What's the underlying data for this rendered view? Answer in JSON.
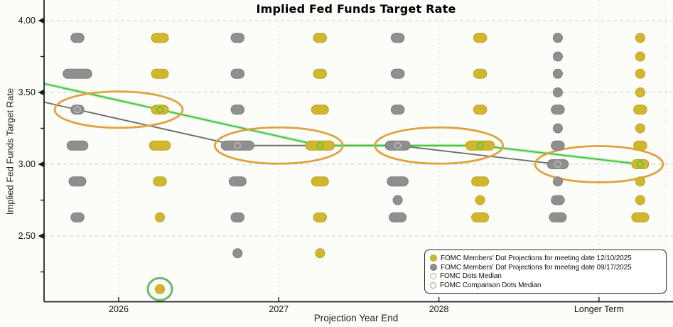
{
  "title": "Implied Fed Funds Target Rate",
  "legend": {
    "items": [
      {
        "label": "FOMC Members' Dot Projections for meeting date 12/10/2025",
        "marker": {
          "type": "dot",
          "fill": "#d1b62f",
          "edge": "#bfa31e"
        }
      },
      {
        "label": "FOMC Members' Dot Projections for meeting date 09/17/2025",
        "marker": {
          "type": "dot",
          "fill": "#8f8f8f",
          "edge": "#7e7e7e"
        }
      },
      {
        "label": "FOMC Dots Median",
        "marker": {
          "type": "ring",
          "edge": "#7cc87c"
        }
      },
      {
        "label": "FOMC Comparison Dots Median",
        "marker": {
          "type": "ring",
          "edge": "#9a9a9a"
        }
      }
    ]
  },
  "chart_data": {
    "type": "scatter",
    "title": "Implied Fed Funds Target Rate",
    "xlabel": "Projection Year End",
    "ylabel": "Implied Fed Funds Target Rate",
    "categories": [
      "2026",
      "2027",
      "2028",
      "Longer Term"
    ],
    "y_ticks": [
      {
        "label": "4.00",
        "value": 4.0
      },
      {
        "label": "3.50",
        "value": 3.5
      },
      {
        "label": "3.00",
        "value": 3.0
      },
      {
        "label": "2.50",
        "value": 2.5
      }
    ],
    "y_minor_ticks": [
      3.75,
      3.25,
      2.75,
      2.25
    ],
    "ylim": [
      2.05,
      4.14
    ],
    "grid": true,
    "legend_position": "lower right",
    "dot_series": [
      {
        "name": "FOMC Members' Dot Projections for meeting date 12/10/2025",
        "color": "#d1b62f",
        "edge_color": "#bfa31e",
        "column_side": "right",
        "dots_by_category": [
          [
            {
              "value": 3.88,
              "count": 3
            },
            {
              "value": 3.63,
              "count": 3
            },
            {
              "value": 3.38,
              "count": 3
            },
            {
              "value": 3.13,
              "count": 4
            },
            {
              "value": 2.88,
              "count": 2
            },
            {
              "value": 2.63,
              "count": 1
            },
            {
              "value": 2.13,
              "count": 1
            }
          ],
          [
            {
              "value": 3.88,
              "count": 2
            },
            {
              "value": 3.63,
              "count": 2
            },
            {
              "value": 3.38,
              "count": 3
            },
            {
              "value": 3.13,
              "count": 6
            },
            {
              "value": 2.88,
              "count": 3
            },
            {
              "value": 2.63,
              "count": 2
            },
            {
              "value": 2.38,
              "count": 1
            }
          ],
          [
            {
              "value": 3.88,
              "count": 2
            },
            {
              "value": 3.63,
              "count": 2
            },
            {
              "value": 3.38,
              "count": 2
            },
            {
              "value": 3.13,
              "count": 6
            },
            {
              "value": 2.88,
              "count": 3
            },
            {
              "value": 2.75,
              "count": 1
            },
            {
              "value": 2.63,
              "count": 3
            }
          ],
          [
            {
              "value": 3.88,
              "count": 1
            },
            {
              "value": 3.75,
              "count": 1
            },
            {
              "value": 3.63,
              "count": 1
            },
            {
              "value": 3.5,
              "count": 1
            },
            {
              "value": 3.38,
              "count": 2
            },
            {
              "value": 3.25,
              "count": 1
            },
            {
              "value": 3.13,
              "count": 2
            },
            {
              "value": 3.0,
              "count": 3
            },
            {
              "value": 2.88,
              "count": 1
            },
            {
              "value": 2.75,
              "count": 1
            },
            {
              "value": 2.63,
              "count": 3
            }
          ]
        ]
      },
      {
        "name": "FOMC Members' Dot Projections for meeting date 09/17/2025",
        "color": "#8f8f8f",
        "edge_color": "#7e7e7e",
        "column_side": "left",
        "dots_by_category": [
          [
            {
              "value": 3.88,
              "count": 2
            },
            {
              "value": 3.63,
              "count": 6
            },
            {
              "value": 3.38,
              "count": 2
            },
            {
              "value": 3.13,
              "count": 4
            },
            {
              "value": 2.88,
              "count": 3
            },
            {
              "value": 2.63,
              "count": 2
            }
          ],
          [
            {
              "value": 3.88,
              "count": 2
            },
            {
              "value": 3.63,
              "count": 2
            },
            {
              "value": 3.38,
              "count": 2
            },
            {
              "value": 3.13,
              "count": 7
            },
            {
              "value": 2.88,
              "count": 3
            },
            {
              "value": 2.63,
              "count": 2
            },
            {
              "value": 2.38,
              "count": 1
            }
          ],
          [
            {
              "value": 3.88,
              "count": 2
            },
            {
              "value": 3.63,
              "count": 2
            },
            {
              "value": 3.38,
              "count": 2
            },
            {
              "value": 3.13,
              "count": 5
            },
            {
              "value": 2.88,
              "count": 4
            },
            {
              "value": 2.75,
              "count": 1
            },
            {
              "value": 2.63,
              "count": 3
            }
          ],
          [
            {
              "value": 3.88,
              "count": 1
            },
            {
              "value": 3.75,
              "count": 1
            },
            {
              "value": 3.63,
              "count": 1
            },
            {
              "value": 3.5,
              "count": 1
            },
            {
              "value": 3.38,
              "count": 2
            },
            {
              "value": 3.25,
              "count": 1
            },
            {
              "value": 3.13,
              "count": 2
            },
            {
              "value": 3.0,
              "count": 4
            },
            {
              "value": 2.88,
              "count": 1
            },
            {
              "value": 2.75,
              "count": 2
            },
            {
              "value": 2.63,
              "count": 3
            }
          ]
        ]
      }
    ],
    "median_lines": [
      {
        "name": "FOMC Comparison Dots Median",
        "color": "#6e6e6e",
        "column_side": "left",
        "values": [
          3.38,
          3.13,
          3.13,
          3.0
        ],
        "prior_year_value": 3.63,
        "ring_color": "#b4b4b4"
      },
      {
        "name": "FOMC Dots Median",
        "color": "#44c544",
        "column_side": "right",
        "values": [
          3.38,
          3.13,
          3.13,
          3.0
        ],
        "prior_year_value": 3.63,
        "ring_color": "#57c93a",
        "halo": true
      }
    ],
    "highlights": {
      "median_ellipse_color": "#e0a23e",
      "median_ellipse_values": [
        3.38,
        3.13,
        3.13,
        3.0
      ],
      "outlier_circle": {
        "color": "#68b868",
        "category_index": 0,
        "value": 2.13,
        "series": "FOMC Members' Dot Projections for meeting date 12/10/2025"
      }
    },
    "colors": {
      "background": "#fcfcf9",
      "grid": "#cdcdcd",
      "axis": "#1a1a1a",
      "tick_text": "#111111"
    }
  }
}
